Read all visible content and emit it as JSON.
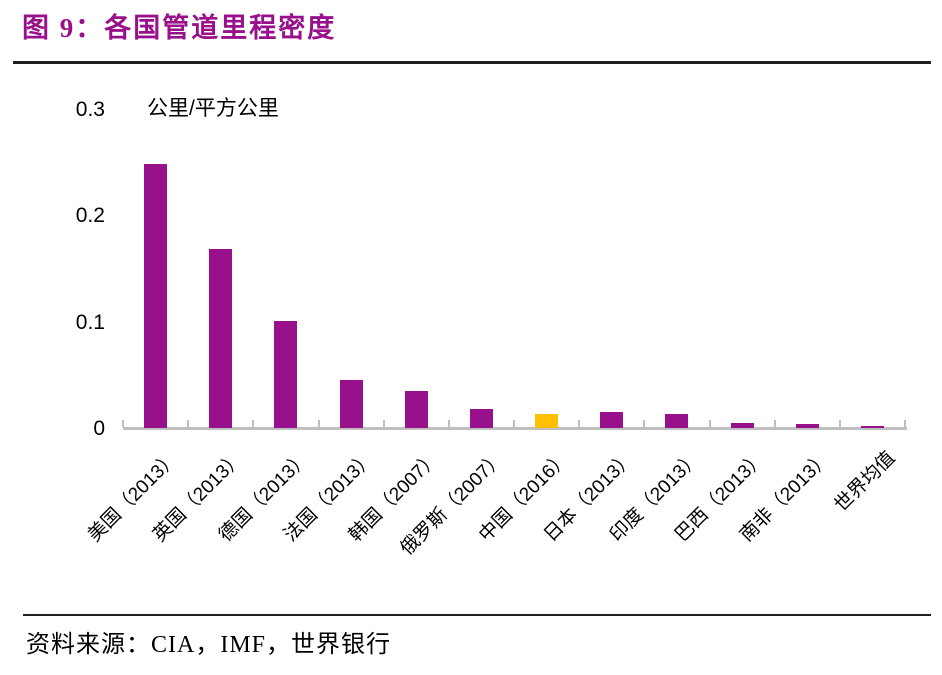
{
  "header": {
    "title": "图 9：各国管道里程密度"
  },
  "colors": {
    "title": "#99108C",
    "bar": "#99108C",
    "highlight_bar": "#FFC000",
    "axis": "#BFBFBF",
    "rule": "#1F1F1F",
    "text": "#000000"
  },
  "chart_data": {
    "type": "bar",
    "title": "各国管道里程密度",
    "xlabel": "",
    "ylabel": "公里/平方公里",
    "ylim": [
      0,
      0.3
    ],
    "yticks": [
      0,
      0.1,
      0.2,
      0.3
    ],
    "ytick_labels": [
      "0",
      "0.1",
      "0.2",
      "0.3"
    ],
    "grid": false,
    "legend": false,
    "categories": [
      "美国（2013）",
      "英国（2013）",
      "德国（2013）",
      "法国（2013）",
      "韩国（2007）",
      "俄罗斯（2007）",
      "中国（2016）",
      "日本（2013）",
      "印度（2013）",
      "巴西（2013）",
      "南非（2013）",
      "世界均值"
    ],
    "values": [
      0.248,
      0.168,
      0.1,
      0.045,
      0.035,
      0.018,
      0.013,
      0.015,
      0.013,
      0.005,
      0.004,
      0.002
    ],
    "highlight": {
      "index": 6,
      "category": "中国（2016）",
      "color": "#FFC000"
    }
  },
  "source": {
    "text": "资料来源：CIA，IMF，世界银行"
  }
}
